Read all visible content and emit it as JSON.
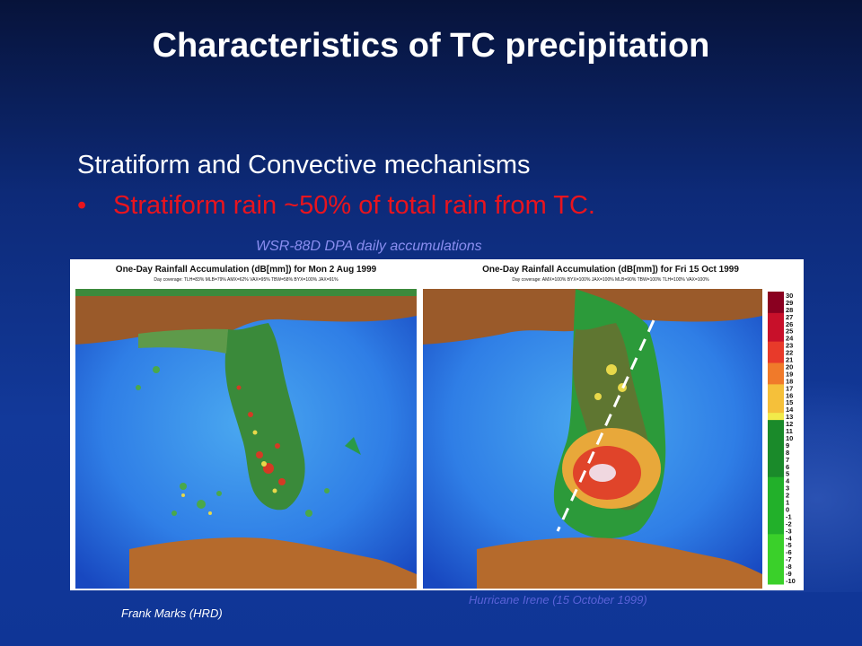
{
  "slide": {
    "title": "Characteristics of TC precipitation",
    "subtitle": "Stratiform and Convective mechanisms",
    "bullet_marker": "•",
    "bullet_text": "Stratiform rain ~50% of total rain from TC.",
    "caption_top": "WSR-88D DPA daily accumulations",
    "caption_bottom_left": "Frank Marks (HRD)",
    "caption_bottom_right": "Hurricane Irene (15 October 1999)"
  },
  "left_panel": {
    "title": "One-Day Rainfall Accumulation (dB[mm]) for Mon 2 Aug 1999",
    "coverage": "Day coverage: TLH=83% MLB=79% AMX=62% VAX=95% TBW=58% BYX=100% JAX=91%"
  },
  "right_panel": {
    "title": "One-Day Rainfall Accumulation (dB[mm]) for Fri 15 Oct 1999",
    "coverage": "Day coverage: AMX=100% BYX=100% JAX=100% MLB=90% TBW=100% TLH=100% VAX=100%"
  },
  "colorbar": {
    "ticks": [
      "30",
      "29",
      "28",
      "27",
      "26",
      "25",
      "24",
      "23",
      "22",
      "21",
      "20",
      "19",
      "18",
      "17",
      "16",
      "15",
      "14",
      "13",
      "12",
      "11",
      "10",
      "9",
      "8",
      "7",
      "6",
      "5",
      "4",
      "3",
      "2",
      "1",
      "0",
      "-1",
      "-2",
      "-3",
      "-4",
      "-5",
      "-6",
      "-7",
      "-8",
      "-9",
      "-10"
    ]
  },
  "colors": {
    "title": "#ffffff",
    "bullet": "#e8141e",
    "caption_top": "#8a8ef0",
    "caption_bottom_right": "#5a62d8"
  }
}
